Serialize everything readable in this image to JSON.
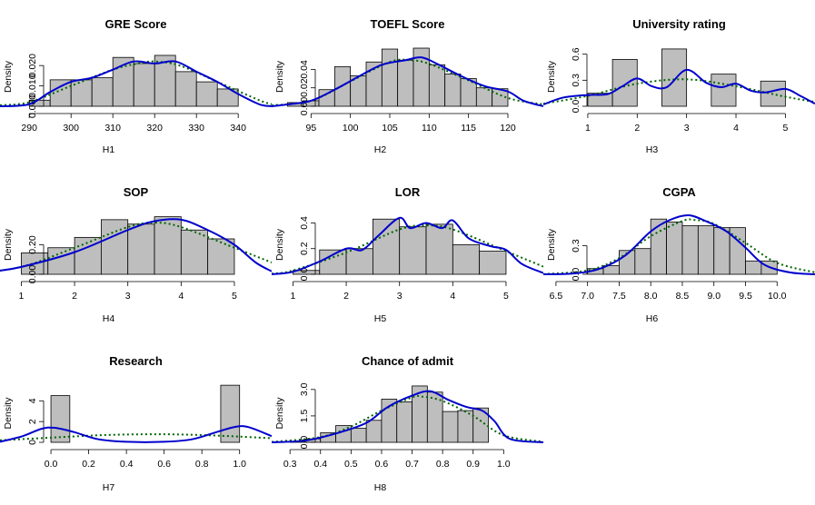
{
  "ylabel_common": "Density",
  "colors": {
    "bar_fill": "#bebebe",
    "bar_stroke": "#000000",
    "kde": "#0000cd",
    "normal": "#006400",
    "axis": "#000000"
  },
  "chart_data": [
    {
      "type": "histogram",
      "title": "GRE Score",
      "xlabel": "H1",
      "ylabel": "Density",
      "xlim": [
        283,
        348
      ],
      "ylim": [
        0,
        0.029
      ],
      "xticks": [
        290,
        300,
        310,
        320,
        330,
        340
      ],
      "yticks": [
        0.0,
        0.01,
        0.02
      ],
      "ytick_labels": [
        "0.000",
        "0.010",
        "0.020"
      ],
      "bins": [
        [
          290,
          295,
          0.003
        ],
        [
          295,
          300,
          0.013
        ],
        [
          300,
          305,
          0.013
        ],
        [
          305,
          310,
          0.014
        ],
        [
          310,
          315,
          0.024
        ],
        [
          315,
          320,
          0.021
        ],
        [
          320,
          325,
          0.025
        ],
        [
          325,
          330,
          0.017
        ],
        [
          330,
          335,
          0.012
        ],
        [
          335,
          340,
          0.0085
        ]
      ],
      "kde": [
        [
          283,
          0
        ],
        [
          290,
          0.001
        ],
        [
          295,
          0.007
        ],
        [
          300,
          0.012
        ],
        [
          305,
          0.014
        ],
        [
          310,
          0.018
        ],
        [
          315,
          0.022
        ],
        [
          320,
          0.021
        ],
        [
          325,
          0.022
        ],
        [
          330,
          0.017
        ],
        [
          335,
          0.012
        ],
        [
          340,
          0.006
        ],
        [
          345,
          0.001
        ],
        [
          348,
          0
        ]
      ],
      "normal": [
        [
          283,
          0.0005
        ],
        [
          290,
          0.002
        ],
        [
          300,
          0.01
        ],
        [
          310,
          0.018
        ],
        [
          316,
          0.021
        ],
        [
          320,
          0.022
        ],
        [
          326,
          0.02
        ],
        [
          335,
          0.012
        ],
        [
          345,
          0.003
        ],
        [
          348,
          0.001
        ]
      ]
    },
    {
      "type": "histogram",
      "title": "TOEFL Score",
      "xlabel": "H2",
      "ylabel": "Density",
      "xlim": [
        90,
        124.5
      ],
      "ylim": [
        0,
        0.064
      ],
      "xticks": [
        95,
        100,
        105,
        110,
        115,
        120
      ],
      "yticks": [
        0.0,
        0.02,
        0.04
      ],
      "ytick_labels": [
        "0.00",
        "0.02",
        "0.04"
      ],
      "bins": [
        [
          92,
          94,
          0.004
        ],
        [
          94,
          96,
          0.006
        ],
        [
          96,
          98,
          0.018
        ],
        [
          98,
          100,
          0.043
        ],
        [
          100,
          102,
          0.033
        ],
        [
          102,
          104,
          0.048
        ],
        [
          104,
          106,
          0.062
        ],
        [
          106,
          108,
          0.05
        ],
        [
          108,
          110,
          0.063
        ],
        [
          110,
          112,
          0.045
        ],
        [
          112,
          114,
          0.035
        ],
        [
          114,
          116,
          0.03
        ],
        [
          116,
          118,
          0.02
        ],
        [
          118,
          120,
          0.019
        ]
      ],
      "kde": [
        [
          90,
          0
        ],
        [
          92,
          0.002
        ],
        [
          95,
          0.006
        ],
        [
          98,
          0.018
        ],
        [
          101,
          0.032
        ],
        [
          104,
          0.045
        ],
        [
          107,
          0.05
        ],
        [
          109,
          0.053
        ],
        [
          111,
          0.046
        ],
        [
          114,
          0.033
        ],
        [
          117,
          0.022
        ],
        [
          120,
          0.016
        ],
        [
          122,
          0.006
        ],
        [
          124.5,
          0
        ]
      ],
      "normal": [
        [
          90,
          0.001
        ],
        [
          95,
          0.006
        ],
        [
          100,
          0.027
        ],
        [
          105,
          0.048
        ],
        [
          107.5,
          0.05
        ],
        [
          110,
          0.046
        ],
        [
          115,
          0.028
        ],
        [
          120,
          0.009
        ],
        [
          124.5,
          0.002
        ]
      ]
    },
    {
      "type": "histogram",
      "title": "University rating",
      "xlabel": "H3",
      "ylabel": "Density",
      "xlim": [
        0.1,
        5.6
      ],
      "ylim": [
        0,
        0.68
      ],
      "xticks": [
        1,
        2,
        3,
        4,
        5
      ],
      "yticks": [
        0.0,
        0.3,
        0.6
      ],
      "ytick_labels": [
        "0.0",
        "0.3",
        "0.6"
      ],
      "bins": [
        [
          1,
          1.5,
          0.15
        ],
        [
          1.5,
          2,
          0.54
        ],
        [
          2,
          2.5,
          0
        ],
        [
          2.5,
          3,
          0.66
        ],
        [
          3,
          3.5,
          0
        ],
        [
          3.5,
          4,
          0.37
        ],
        [
          4,
          4.5,
          0
        ],
        [
          4.5,
          5,
          0.29
        ]
      ],
      "kde": [
        [
          0.1,
          0.02
        ],
        [
          0.5,
          0.1
        ],
        [
          1,
          0.13
        ],
        [
          1.4,
          0.14
        ],
        [
          1.7,
          0.23
        ],
        [
          2,
          0.32
        ],
        [
          2.3,
          0.23
        ],
        [
          2.6,
          0.22
        ],
        [
          3,
          0.42
        ],
        [
          3.4,
          0.27
        ],
        [
          3.7,
          0.22
        ],
        [
          4,
          0.26
        ],
        [
          4.3,
          0.18
        ],
        [
          4.6,
          0.16
        ],
        [
          5,
          0.2
        ],
        [
          5.3,
          0.12
        ],
        [
          5.6,
          0.03
        ]
      ],
      "normal": [
        [
          0.1,
          0.03
        ],
        [
          1,
          0.12
        ],
        [
          2,
          0.26
        ],
        [
          3,
          0.31
        ],
        [
          4,
          0.23
        ],
        [
          5,
          0.11
        ],
        [
          5.6,
          0.05
        ]
      ]
    },
    {
      "type": "histogram",
      "title": "SOP",
      "xlabel": "H4",
      "ylabel": "Density",
      "xlim": [
        0.6,
        5.7
      ],
      "ylim": [
        0,
        0.4
      ],
      "xticks": [
        1,
        2,
        3,
        4,
        5
      ],
      "yticks": [
        0.0,
        0.2
      ],
      "ytick_labels": [
        "0.00",
        "0.20"
      ],
      "bins": [
        [
          1,
          1.5,
          0.145
        ],
        [
          1.5,
          2,
          0.18
        ],
        [
          2,
          2.5,
          0.25
        ],
        [
          2.5,
          3,
          0.37
        ],
        [
          3,
          3.5,
          0.34
        ],
        [
          3.5,
          4,
          0.39
        ],
        [
          4,
          4.5,
          0.3
        ],
        [
          4.5,
          5,
          0.24
        ]
      ],
      "kde": [
        [
          0,
          0
        ],
        [
          0.5,
          0.02
        ],
        [
          1,
          0.05
        ],
        [
          2,
          0.15
        ],
        [
          3,
          0.3
        ],
        [
          3.5,
          0.36
        ],
        [
          4,
          0.37
        ],
        [
          4.5,
          0.3
        ],
        [
          5,
          0.2
        ],
        [
          5.4,
          0.08
        ],
        [
          5.7,
          0.02
        ]
      ],
      "normal": [
        [
          0,
          0.003
        ],
        [
          1,
          0.05
        ],
        [
          2,
          0.18
        ],
        [
          3,
          0.32
        ],
        [
          3.5,
          0.35
        ],
        [
          4,
          0.32
        ],
        [
          5,
          0.18
        ],
        [
          5.7,
          0.08
        ]
      ]
    },
    {
      "type": "histogram",
      "title": "LOR",
      "xlabel": "H5",
      "ylabel": "Density",
      "xlim": [
        0.6,
        5.7
      ],
      "ylim": [
        0,
        0.46
      ],
      "xticks": [
        1,
        2,
        3,
        4,
        5
      ],
      "yticks": [
        0.0,
        0.2,
        0.4
      ],
      "ytick_labels": [
        "0.0",
        "0.2",
        "0.4"
      ],
      "bins": [
        [
          1,
          1.5,
          0.03
        ],
        [
          1.5,
          2,
          0.19
        ],
        [
          2,
          2.5,
          0.2
        ],
        [
          2.5,
          3,
          0.43
        ],
        [
          3,
          3.5,
          0.37
        ],
        [
          3.5,
          4,
          0.39
        ],
        [
          4,
          4.5,
          0.23
        ],
        [
          4.5,
          5,
          0.18
        ]
      ],
      "kde": [
        [
          0.6,
          0
        ],
        [
          1,
          0.02
        ],
        [
          1.5,
          0.1
        ],
        [
          2,
          0.2
        ],
        [
          2.3,
          0.19
        ],
        [
          2.6,
          0.3
        ],
        [
          3,
          0.44
        ],
        [
          3.2,
          0.36
        ],
        [
          3.5,
          0.4
        ],
        [
          3.8,
          0.36
        ],
        [
          4,
          0.42
        ],
        [
          4.3,
          0.28
        ],
        [
          4.7,
          0.22
        ],
        [
          5,
          0.19
        ],
        [
          5.3,
          0.08
        ],
        [
          5.7,
          0.01
        ]
      ],
      "normal": [
        [
          0.6,
          0.005
        ],
        [
          1,
          0.03
        ],
        [
          2,
          0.17
        ],
        [
          3,
          0.35
        ],
        [
          3.5,
          0.38
        ],
        [
          4,
          0.35
        ],
        [
          5,
          0.18
        ],
        [
          5.7,
          0.06
        ]
      ]
    },
    {
      "type": "histogram",
      "title": "CGPA",
      "xlabel": "H6",
      "ylabel": "Density",
      "xlim": [
        6.3,
        10.6
      ],
      "ylim": [
        0,
        0.62
      ],
      "xticks": [
        6.5,
        7.0,
        7.5,
        8.0,
        8.5,
        9.0,
        9.5,
        10.0
      ],
      "xtick_labels": [
        "6.5",
        "7.0",
        "7.5",
        "8.0",
        "8.5",
        "9.0",
        "9.5",
        "10.0"
      ],
      "yticks": [
        0.0,
        0.3
      ],
      "ytick_labels": [
        "0.0",
        "0.3"
      ],
      "bins": [
        [
          6.5,
          7.0,
          0
        ],
        [
          7.0,
          7.25,
          0.06
        ],
        [
          7.25,
          7.5,
          0.09
        ],
        [
          7.5,
          7.75,
          0.25
        ],
        [
          7.75,
          8.0,
          0.27
        ],
        [
          8.0,
          8.25,
          0.58
        ],
        [
          8.25,
          8.5,
          0.55
        ],
        [
          8.5,
          8.75,
          0.51
        ],
        [
          8.75,
          9.0,
          0.51
        ],
        [
          9.0,
          9.25,
          0.49
        ],
        [
          9.25,
          9.5,
          0.49
        ],
        [
          9.5,
          9.75,
          0.14
        ],
        [
          9.75,
          10.0,
          0.14
        ]
      ],
      "kde": [
        [
          6.3,
          0
        ],
        [
          6.8,
          0.01
        ],
        [
          7.2,
          0.06
        ],
        [
          7.6,
          0.2
        ],
        [
          8.0,
          0.45
        ],
        [
          8.3,
          0.57
        ],
        [
          8.6,
          0.62
        ],
        [
          8.9,
          0.55
        ],
        [
          9.2,
          0.45
        ],
        [
          9.5,
          0.28
        ],
        [
          9.8,
          0.1
        ],
        [
          10.2,
          0.02
        ],
        [
          10.6,
          0
        ]
      ],
      "normal": [
        [
          6.3,
          0.002
        ],
        [
          7,
          0.04
        ],
        [
          7.5,
          0.17
        ],
        [
          8,
          0.4
        ],
        [
          8.5,
          0.56
        ],
        [
          8.7,
          0.57
        ],
        [
          9,
          0.53
        ],
        [
          9.5,
          0.33
        ],
        [
          10,
          0.12
        ],
        [
          10.6,
          0.02
        ]
      ]
    },
    {
      "type": "histogram",
      "title": "Research",
      "xlabel": "H7",
      "ylabel": "Density",
      "xlim": [
        -0.27,
        1.17
      ],
      "ylim": [
        0,
        5.6
      ],
      "xticks": [
        0.0,
        0.2,
        0.4,
        0.6,
        0.8,
        1.0
      ],
      "xtick_labels": [
        "0.0",
        "0.2",
        "0.4",
        "0.6",
        "0.8",
        "1.0"
      ],
      "yticks": [
        0,
        2,
        4
      ],
      "ytick_labels": [
        "0",
        "2",
        "4"
      ],
      "bins": [
        [
          0,
          0.1,
          4.5
        ],
        [
          0.9,
          1.0,
          5.5
        ]
      ],
      "kde": [
        [
          -0.27,
          0.05
        ],
        [
          -0.15,
          0.6
        ],
        [
          -0.05,
          1.3
        ],
        [
          0.02,
          1.4
        ],
        [
          0.12,
          1.0
        ],
        [
          0.25,
          0.3
        ],
        [
          0.4,
          0.05
        ],
        [
          0.6,
          0.05
        ],
        [
          0.75,
          0.3
        ],
        [
          0.88,
          1.0
        ],
        [
          0.98,
          1.5
        ],
        [
          1.05,
          1.45
        ],
        [
          1.17,
          0.6
        ]
      ],
      "normal": [
        [
          -0.27,
          0.2
        ],
        [
          0,
          0.45
        ],
        [
          0.28,
          0.7
        ],
        [
          0.56,
          0.78
        ],
        [
          0.8,
          0.7
        ],
        [
          1.0,
          0.55
        ],
        [
          1.17,
          0.4
        ]
      ]
    },
    {
      "type": "histogram",
      "title": "Chance of admit",
      "xlabel": "H8",
      "ylabel": "Density",
      "xlim": [
        0.24,
        1.13
      ],
      "ylim": [
        0,
        3.3
      ],
      "xticks": [
        0.3,
        0.4,
        0.5,
        0.6,
        0.7,
        0.8,
        0.9,
        1.0
      ],
      "xtick_labels": [
        "0.3",
        "0.4",
        "0.5",
        "0.6",
        "0.7",
        "0.8",
        "0.9",
        "1.0"
      ],
      "yticks": [
        0.0,
        1.5,
        3.0
      ],
      "ytick_labels": [
        "0.0",
        "1.5",
        "3.0"
      ],
      "bins": [
        [
          0.3,
          0.35,
          0.05
        ],
        [
          0.35,
          0.4,
          0.2
        ],
        [
          0.4,
          0.45,
          0.55
        ],
        [
          0.45,
          0.5,
          0.95
        ],
        [
          0.5,
          0.55,
          0.8
        ],
        [
          0.55,
          0.6,
          1.25
        ],
        [
          0.6,
          0.65,
          2.45
        ],
        [
          0.65,
          0.7,
          2.3
        ],
        [
          0.7,
          0.75,
          3.2
        ],
        [
          0.75,
          0.8,
          2.85
        ],
        [
          0.8,
          0.85,
          1.75
        ],
        [
          0.85,
          0.9,
          1.8
        ],
        [
          0.9,
          0.95,
          1.95
        ],
        [
          0.95,
          1.0,
          0
        ]
      ],
      "kde": [
        [
          0.24,
          0
        ],
        [
          0.35,
          0.1
        ],
        [
          0.45,
          0.5
        ],
        [
          0.55,
          1.1
        ],
        [
          0.62,
          2.0
        ],
        [
          0.7,
          2.65
        ],
        [
          0.76,
          2.9
        ],
        [
          0.82,
          2.4
        ],
        [
          0.88,
          2.0
        ],
        [
          0.93,
          1.8
        ],
        [
          0.97,
          1.2
        ],
        [
          1.02,
          0.2
        ],
        [
          1.13,
          0
        ]
      ],
      "normal": [
        [
          0.24,
          0.02
        ],
        [
          0.4,
          0.3
        ],
        [
          0.5,
          0.9
        ],
        [
          0.6,
          1.8
        ],
        [
          0.7,
          2.55
        ],
        [
          0.73,
          2.6
        ],
        [
          0.8,
          2.35
        ],
        [
          0.9,
          1.5
        ],
        [
          1.0,
          0.4
        ],
        [
          1.13,
          0.03
        ]
      ]
    }
  ]
}
